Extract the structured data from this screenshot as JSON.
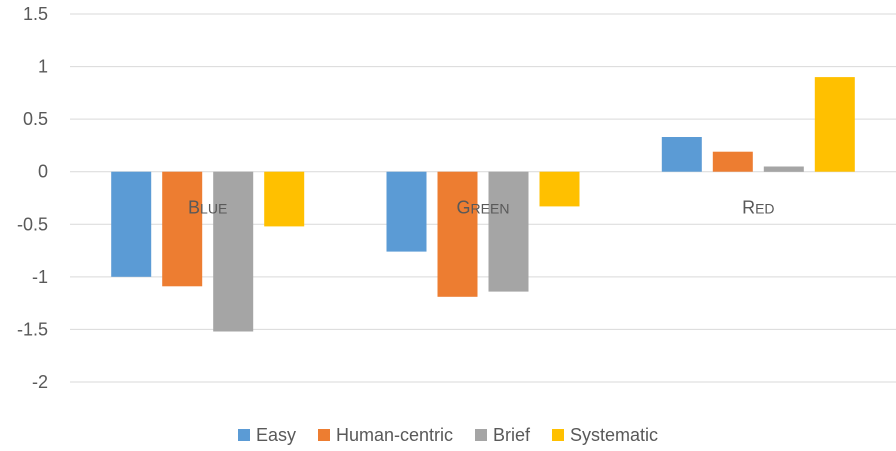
{
  "chart_data": {
    "type": "bar",
    "categories": [
      "Blue",
      "Green",
      "Red"
    ],
    "series": [
      {
        "name": "Easy",
        "color": "#5B9BD5",
        "values": [
          -1.0,
          -0.76,
          0.33
        ]
      },
      {
        "name": "Human-centric",
        "color": "#ED7D31",
        "values": [
          -1.09,
          -1.19,
          0.19
        ]
      },
      {
        "name": "Brief",
        "color": "#A5A5A5",
        "values": [
          -1.52,
          -1.14,
          0.05
        ]
      },
      {
        "name": "Systematic",
        "color": "#FFC000",
        "values": [
          -0.52,
          -0.33,
          0.9
        ]
      }
    ],
    "yticks": [
      1.5,
      1,
      0.5,
      0,
      -0.5,
      -1,
      -1.5,
      -2
    ],
    "ytick_labels": [
      "1.5",
      "1",
      "0.5",
      "0",
      "-0.5",
      "-1",
      "-1.5",
      "-2"
    ],
    "ylim": [
      -2,
      1.5
    ],
    "grid": true,
    "legend_position": "bottom",
    "category_label_position": "at zero line",
    "title": "",
    "xlabel": "",
    "ylabel": ""
  }
}
